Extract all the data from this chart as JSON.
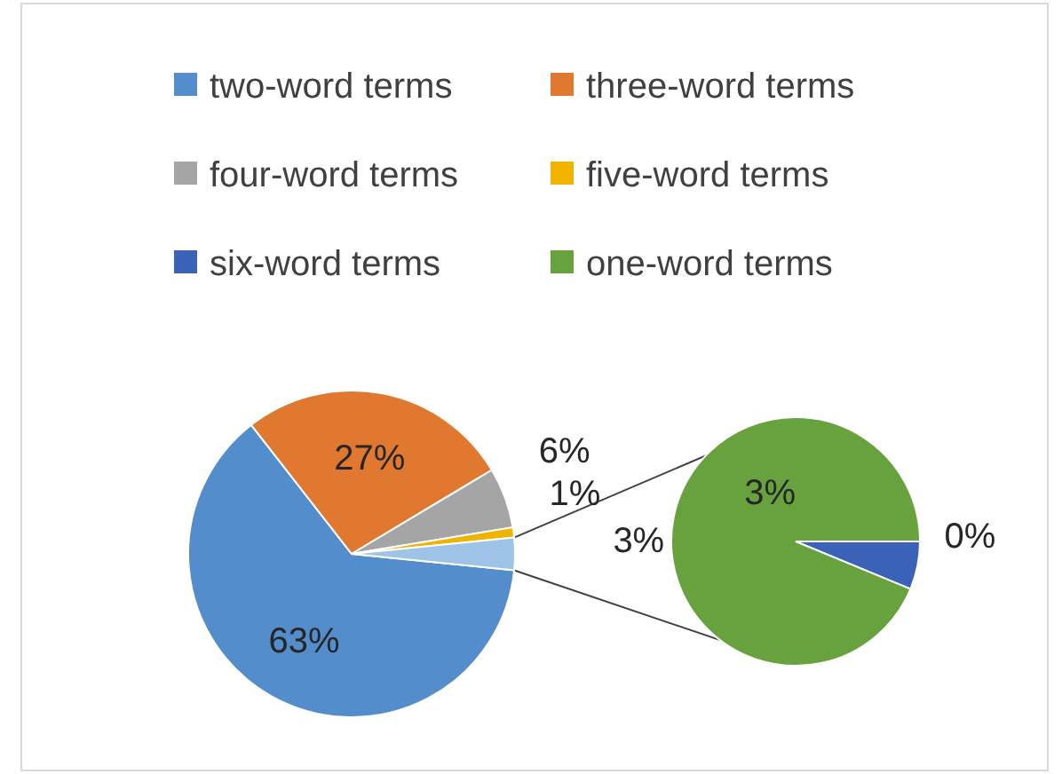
{
  "chart_data": [
    {
      "type": "pie",
      "categories": [
        "two-word terms",
        "three-word terms",
        "four-word terms",
        "five-word terms",
        null
      ],
      "values": [
        63,
        27,
        6,
        1,
        3.2
      ],
      "value_labels": [
        "63%",
        "27%",
        "6%",
        "1%",
        "3%"
      ],
      "colors": [
        "#548dcc",
        "#e0782f",
        "#a5a5a5",
        "#f0b400",
        "#9dc3e6"
      ],
      "legend": "top"
    },
    {
      "type": "pie",
      "categories": [
        "six-word terms",
        "one-word terms"
      ],
      "values": [
        0.2,
        3
      ],
      "value_labels": [
        "0%",
        "3%"
      ],
      "colors": [
        "#3a63b8",
        "#67a23e"
      ],
      "legend": "top"
    }
  ]
}
